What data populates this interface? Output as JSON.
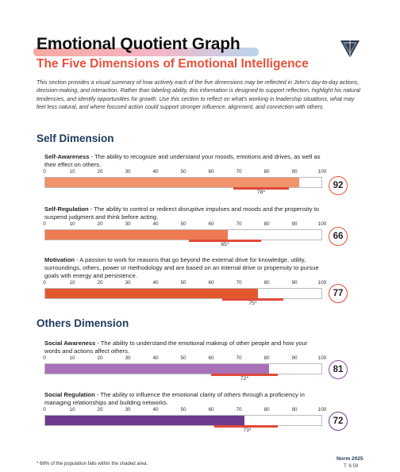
{
  "header": {
    "title": "Emotional Quotient Graph",
    "subtitle": "The Five Dimensions of Emotional Intelligence",
    "logo_icon": "triangle-logo-icon"
  },
  "intro": "This section provides a visual summary of how actively each of the five dimensions may be reflected in John's day-to-day actions, decision-making, and interaction.  Rather than labeling ability, this information is designed to support reflection, highlight his natural tendencies, and identify opportunities for growth. Use this section to reflect on what's working in leadership situations, what may feel less natural, and where focused action could support stronger influence, alignment, and connection with others.",
  "axis_ticks": [
    "0",
    "10",
    "20",
    "30",
    "40",
    "50",
    "60",
    "70",
    "80",
    "90",
    "100"
  ],
  "sections": {
    "self": {
      "heading": "Self Dimension",
      "dimensions": [
        {
          "name": "Self-Awareness",
          "description": " - The ability to recognize and understand your moods, emotions and drives, as well as their effect on others.",
          "score": 92,
          "score_label": "92",
          "norm": 78,
          "norm_label": "78*",
          "norm_low": 68,
          "norm_high": 88,
          "color": "#f0936a",
          "ring_color": "#e8503a",
          "band_color": "#e04a3a"
        },
        {
          "name": "Self-Regulation",
          "description": " - The ability to control or redirect disruptive impulses and moods and the propensity to suspend judgment and think before acting.",
          "score": 66,
          "score_label": "66",
          "norm": 65,
          "norm_label": "65*",
          "norm_low": 52,
          "norm_high": 78,
          "color": "#ee7a52",
          "ring_color": "#e8503a",
          "band_color": "#e04a3a"
        },
        {
          "name": "Motivation",
          "description": " - A passion to work for reasons that go beyond the external drive for knowledge, utility, surroundings, others, power or methodology and are based on an internal drive or propensity to pursue goals with energy and persistence.",
          "score": 77,
          "score_label": "77",
          "norm": 75,
          "norm_label": "75*",
          "norm_low": 64,
          "norm_high": 86,
          "color": "#e4582e",
          "ring_color": "#e04a3a",
          "band_color": "#e04a3a"
        }
      ]
    },
    "others": {
      "heading": "Others Dimension",
      "dimensions": [
        {
          "name": "Social Awareness",
          "description": " - The ability to understand the emotional makeup of other people and how your words and actions affect others.",
          "score": 81,
          "score_label": "81",
          "norm": 72,
          "norm_label": "72*",
          "norm_low": 60,
          "norm_high": 84,
          "color": "#a871b8",
          "ring_color": "#8a4a9e",
          "band_color": "#e04a3a"
        },
        {
          "name": "Social Regulation",
          "description": " - The ability to influence the emotional clarity of others through a proficiency in managing relationships and building networks.",
          "score": 72,
          "score_label": "72",
          "norm": 73,
          "norm_label": "73*",
          "norm_low": 61,
          "norm_high": 84,
          "color": "#6e3a8c",
          "ring_color": "#6e3a8c",
          "band_color": "#e04a3a"
        }
      ]
    }
  },
  "footer": {
    "footnote": "* 68% of the population falls within the shaded area.",
    "norm_year": "Norm 2025",
    "norm_code": "T: 6:59"
  }
}
